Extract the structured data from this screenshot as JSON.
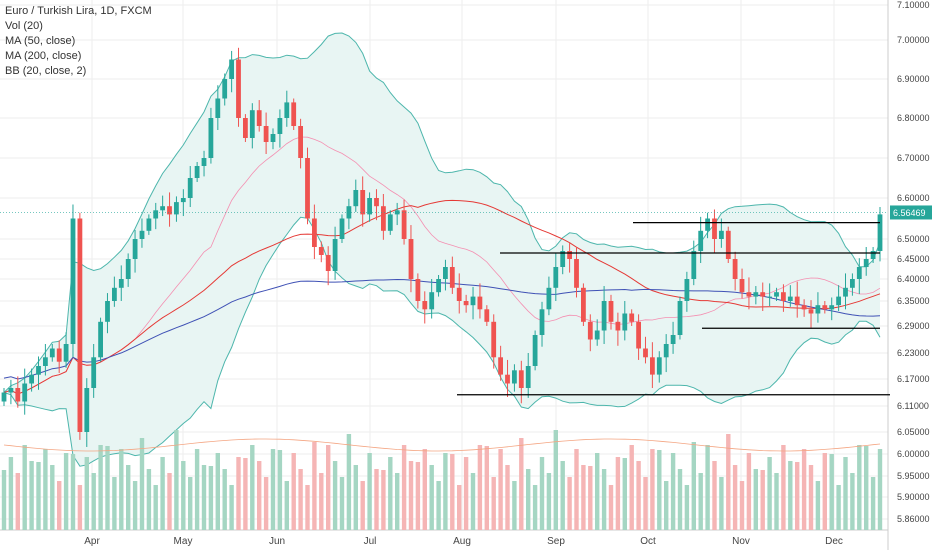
{
  "legend": {
    "title": "Euro / Turkish Lira, 1D, FXCM",
    "vol": "Vol (20)",
    "ma50": "MA (50, close)",
    "ma200": "MA (200, close)",
    "bb": "BB (20, close, 2)"
  },
  "colors": {
    "up": "#26a69a",
    "down": "#ef5350",
    "vol_up": "#a5d6c3",
    "vol_down": "#f5b5b5",
    "ma50": "#e53935",
    "ma200": "#3f51b5",
    "bb": "#4db6ac",
    "bb_fill": "#e8f5f3",
    "grid": "#eeeeee",
    "axis_text": "#444444"
  },
  "chart_data": {
    "type": "candlestick",
    "y_axis": {
      "ticks": [
        "7.10000",
        "7.00000",
        "6.90000",
        "6.80000",
        "6.70000",
        "6.60000",
        "6.50000",
        "6.45000",
        "6.40000",
        "6.35000",
        "6.29000",
        "6.23000",
        "6.17000",
        "6.11000",
        "6.05000",
        "6.00000",
        "5.95000",
        "5.90000",
        "5.86000"
      ],
      "last_price": "6.56469"
    },
    "x_axis": {
      "labels": [
        "Apr",
        "May",
        "Jun",
        "Jul",
        "Aug",
        "Sep",
        "Oct",
        "Nov",
        "Dec"
      ]
    },
    "series": {
      "close": [
        6.14,
        6.15,
        6.12,
        6.16,
        6.18,
        6.2,
        6.22,
        6.24,
        6.21,
        6.25,
        6.55,
        6.05,
        6.15,
        6.22,
        6.3,
        6.35,
        6.38,
        6.4,
        6.45,
        6.5,
        6.52,
        6.55,
        6.57,
        6.58,
        6.56,
        6.59,
        6.6,
        6.65,
        6.68,
        6.7,
        6.8,
        6.85,
        6.9,
        6.95,
        6.8,
        6.75,
        6.82,
        6.78,
        6.74,
        6.76,
        6.8,
        6.84,
        6.78,
        6.7,
        6.55,
        6.48,
        6.46,
        6.42,
        6.5,
        6.55,
        6.58,
        6.62,
        6.56,
        6.6,
        6.58,
        6.52,
        6.56,
        6.57,
        6.5,
        6.4,
        6.35,
        6.33,
        6.37,
        6.4,
        6.43,
        6.38,
        6.35,
        6.34,
        6.36,
        6.33,
        6.3,
        6.22,
        6.18,
        6.16,
        6.19,
        6.15,
        6.2,
        6.27,
        6.33,
        6.38,
        6.43,
        6.47,
        6.45,
        6.38,
        6.3,
        6.26,
        6.28,
        6.35,
        6.3,
        6.28,
        6.32,
        6.3,
        6.24,
        6.22,
        6.18,
        6.22,
        6.25,
        6.27,
        6.35,
        6.4,
        6.47,
        6.52,
        6.55,
        6.5,
        6.52,
        6.45,
        6.4,
        6.37,
        6.36,
        6.37,
        6.36,
        6.36,
        6.37,
        6.35,
        6.36,
        6.34,
        6.33,
        6.32,
        6.34,
        6.33,
        6.34,
        6.36,
        6.38,
        6.4,
        6.43,
        6.45,
        6.47,
        6.56
      ]
    }
  }
}
